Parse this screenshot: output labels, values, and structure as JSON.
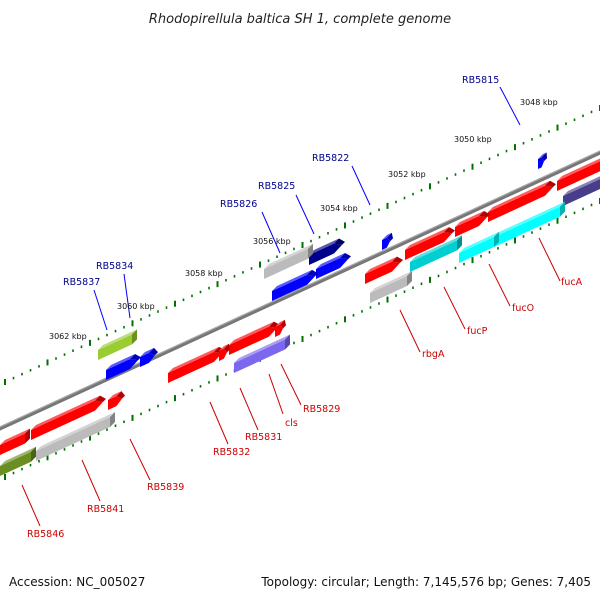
{
  "title": "Rhodopirellula baltica SH 1, complete genome",
  "accession_label": "Accession: NC_005027",
  "topology_label": "Topology: circular; Length: 7,145,576 bp; Genes: 7,405",
  "colors": {
    "label_forward": "#00008b",
    "label_reverse": "#cc0000",
    "ruler_ticks": "#007000",
    "backbone": "#777777"
  },
  "ruler_labels": [
    "3048 kbp",
    "3050 kbp",
    "3052 kbp",
    "3054 kbp",
    "3056 kbp",
    "3058 kbp",
    "3060 kbp",
    "3062 kbp"
  ],
  "genes_forward": [
    {
      "label": "RB5815",
      "color": "#0000ff"
    },
    {
      "label": "RB5822",
      "color": "#0000ff"
    },
    {
      "label": "RB5825",
      "color": "#00008b"
    },
    {
      "label": "RB5826",
      "color": "#0000ff"
    },
    {
      "label": "RB5834",
      "color": "#0000ff"
    },
    {
      "label": "RB5837",
      "color": "#9acd32"
    }
  ],
  "genes_reverse": [
    {
      "label": "fucA",
      "color": "#483d8b"
    },
    {
      "label": "fucO",
      "color": "#00ffff"
    },
    {
      "label": "fucP",
      "color": "#00ced1"
    },
    {
      "label": "rbgA",
      "color": "#bbbbbb"
    },
    {
      "label": "RB5829",
      "color": "#7b68ee"
    },
    {
      "label": "cls",
      "color": "#ff0000"
    },
    {
      "label": "RB5831",
      "color": "#ff0000"
    },
    {
      "label": "RB5832",
      "color": "#ff0000"
    },
    {
      "label": "RB5839",
      "color": "#bbbbbb"
    },
    {
      "label": "RB5841",
      "color": "#bbbbbb"
    },
    {
      "label": "RB5846",
      "color": "#6b8e23"
    }
  ]
}
